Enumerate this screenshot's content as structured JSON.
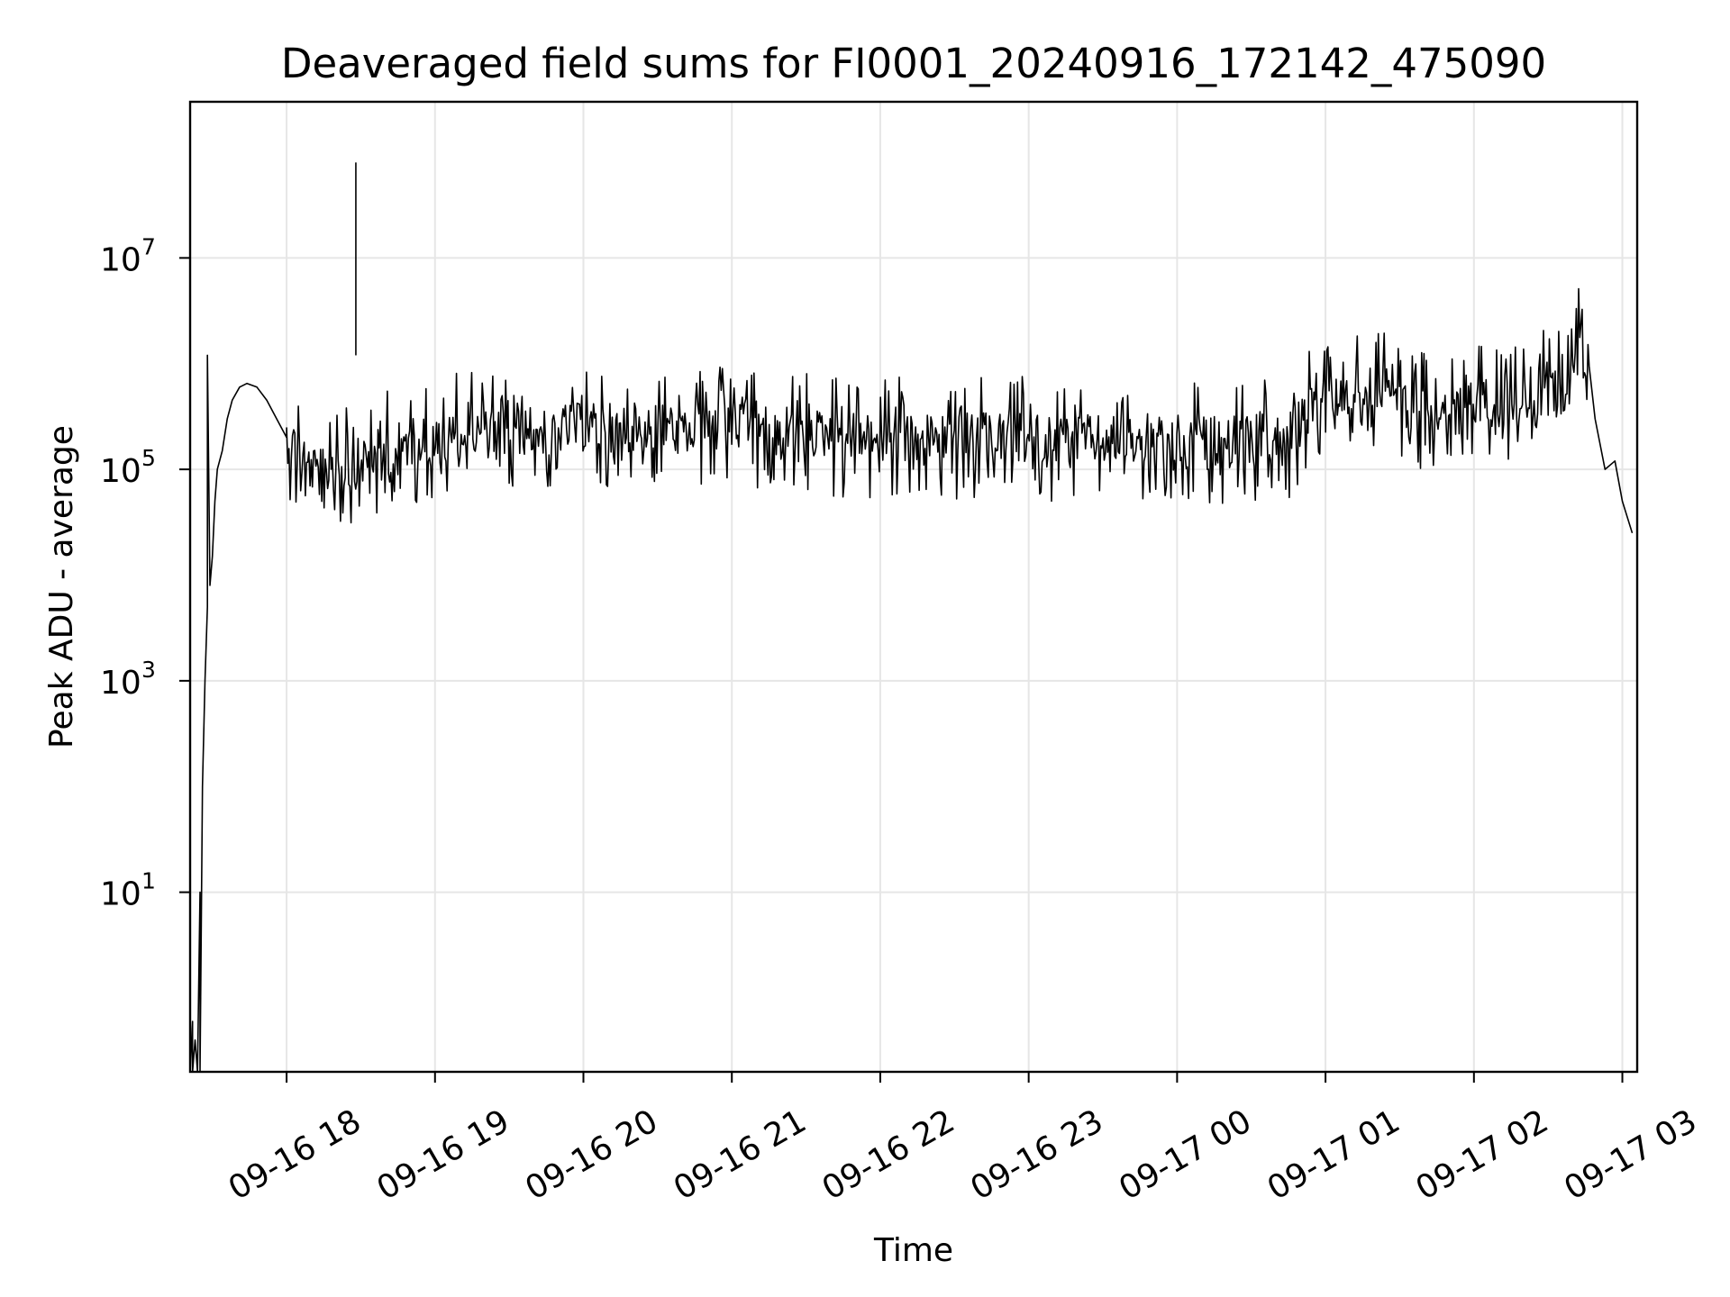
{
  "chart_data": {
    "type": "line",
    "title": "Deaveraged field sums for FI0001_20240916_172142_475090",
    "xlabel": "Time",
    "ylabel": "Peak ADU - average",
    "yscale": "log",
    "xlim": [
      "2024-09-16 17:21",
      "2024-09-17 03:06"
    ],
    "ylim": [
      0.2,
      300000000
    ],
    "grid": true,
    "line_color": "#000000",
    "grid_color": "#e6e6e6",
    "x_ticks": [
      {
        "label": "09-16 18",
        "time": "2024-09-16 18:00"
      },
      {
        "label": "09-16 19",
        "time": "2024-09-16 19:00"
      },
      {
        "label": "09-16 20",
        "time": "2024-09-16 20:00"
      },
      {
        "label": "09-16 21",
        "time": "2024-09-16 21:00"
      },
      {
        "label": "09-16 22",
        "time": "2024-09-16 22:00"
      },
      {
        "label": "09-16 23",
        "time": "2024-09-16 23:00"
      },
      {
        "label": "09-17 00",
        "time": "2024-09-17 00:00"
      },
      {
        "label": "09-17 01",
        "time": "2024-09-17 01:00"
      },
      {
        "label": "09-17 02",
        "time": "2024-09-17 02:00"
      },
      {
        "label": "09-17 03",
        "time": "2024-09-17 03:00"
      }
    ],
    "y_ticks": [
      {
        "base": "10",
        "exponent": "1",
        "value": 10
      },
      {
        "base": "10",
        "exponent": "3",
        "value": 1000
      },
      {
        "base": "10",
        "exponent": "5",
        "value": 100000
      },
      {
        "base": "10",
        "exponent": "7",
        "value": 10000000
      }
    ],
    "series": [
      {
        "points": [
          [
            "2024-09-16 17:21",
            0.2
          ],
          [
            "2024-09-16 17:22",
            0.6
          ],
          [
            "2024-09-16 17:22",
            0.2
          ],
          [
            "2024-09-16 17:23",
            0.4
          ],
          [
            "2024-09-16 17:24",
            0.2
          ],
          [
            "2024-09-16 17:25",
            10
          ],
          [
            "2024-09-16 17:25",
            0.2
          ],
          [
            "2024-09-16 17:26",
            100
          ],
          [
            "2024-09-16 17:27",
            1000
          ],
          [
            "2024-09-16 17:28",
            5000
          ],
          [
            "2024-09-16 17:28",
            1200000
          ],
          [
            "2024-09-16 17:29",
            8000
          ],
          [
            "2024-09-16 17:30",
            15000
          ],
          [
            "2024-09-16 17:31",
            50000
          ],
          [
            "2024-09-16 17:32",
            100000
          ],
          [
            "2024-09-16 17:34",
            150000
          ],
          [
            "2024-09-16 17:36",
            300000
          ],
          [
            "2024-09-16 17:38",
            450000
          ],
          [
            "2024-09-16 17:41",
            600000
          ],
          [
            "2024-09-16 17:44",
            650000
          ],
          [
            "2024-09-16 17:48",
            600000
          ],
          [
            "2024-09-16 17:52",
            450000
          ],
          [
            "2024-09-16 17:56",
            300000
          ],
          [
            "2024-09-16 18:00",
            200000
          ],
          [
            "2024-09-16 18:05",
            150000
          ],
          [
            "2024-09-16 18:10",
            100000
          ],
          [
            "2024-09-16 18:15",
            90000
          ],
          [
            "2024-09-16 18:20",
            110000
          ],
          [
            "2024-09-16 18:25",
            100000
          ],
          [
            "2024-09-16 18:30",
            120000
          ],
          [
            "2024-09-16 18:40",
            150000
          ],
          [
            "2024-09-16 18:50",
            180000
          ],
          [
            "2024-09-16 19:00",
            200000
          ],
          [
            "2024-09-16 20:00",
            250000
          ],
          [
            "2024-09-16 21:00",
            250000
          ],
          [
            "2024-09-16 22:00",
            200000
          ],
          [
            "2024-09-16 23:00",
            200000
          ],
          [
            "2024-09-17 00:00",
            180000
          ],
          [
            "2024-09-17 00:45",
            200000
          ],
          [
            "2024-09-17 01:00",
            500000
          ],
          [
            "2024-09-17 01:20",
            600000
          ],
          [
            "2024-09-17 01:40",
            350000
          ],
          [
            "2024-09-17 02:00",
            400000
          ],
          [
            "2024-09-17 02:20",
            500000
          ],
          [
            "2024-09-17 02:40",
            600000
          ],
          [
            "2024-09-17 02:44",
            3000000
          ],
          [
            "2024-09-17 02:46",
            1500000
          ],
          [
            "2024-09-17 02:49",
            300000
          ],
          [
            "2024-09-17 02:53",
            100000
          ],
          [
            "2024-09-17 02:57",
            120000
          ],
          [
            "2024-09-17 03:00",
            50000
          ],
          [
            "2024-09-17 03:04",
            25000
          ]
        ]
      }
    ],
    "annotations": [
      {
        "kind": "spike",
        "time": "2024-09-16 18:28",
        "value": 80000000
      }
    ]
  }
}
